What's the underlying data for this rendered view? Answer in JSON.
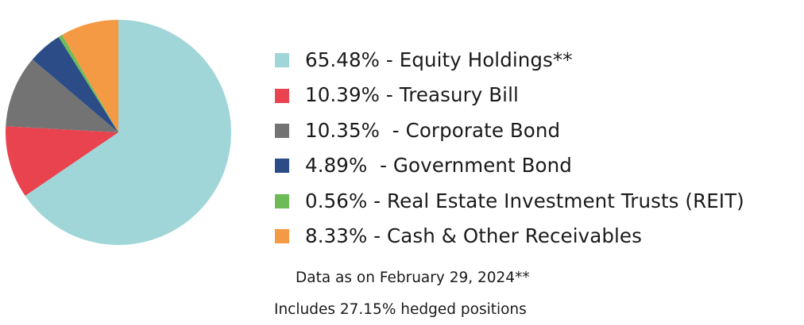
{
  "chart_data": {
    "type": "pie",
    "categories": [
      "Equity Holdings**",
      "Treasury Bill",
      "Corporate Bond",
      "Government Bond",
      "Real Estate Investment Trusts (REIT)",
      "Cash & Other Receivables"
    ],
    "values": [
      65.48,
      10.39,
      10.35,
      4.89,
      0.56,
      8.33
    ],
    "colors": [
      "#a0d6d8",
      "#e8434f",
      "#737373",
      "#2c4c87",
      "#6dbb57",
      "#f59a44"
    ],
    "start_angle_deg": 0,
    "direction": "clockwise",
    "legend": {
      "position": "right",
      "labels": [
        "65.48% - Equity Holdings**",
        "10.39% - Treasury Bill",
        "10.35%  - Corporate Bond",
        "4.89%  - Government Bond",
        "0.56% - Real Estate Investment Trusts (REIT)",
        "8.33% - Cash & Other Receivables"
      ]
    }
  },
  "notes": {
    "date": "Data as on February 29, 2024**",
    "hedged": "Includes 27.15% hedged positions"
  }
}
